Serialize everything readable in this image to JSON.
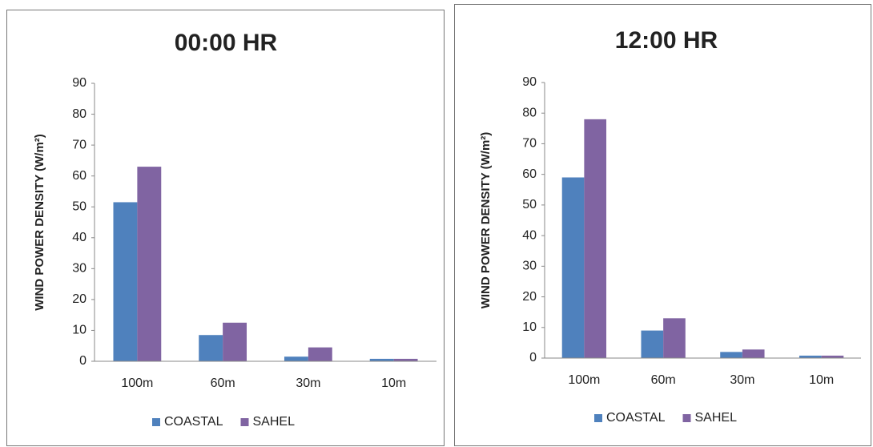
{
  "chart_data": [
    {
      "type": "bar",
      "title": "00:00 HR",
      "y_label": "WIND POWER DENSITY (W/m²)",
      "categories": [
        "100m",
        "60m",
        "30m",
        "10m"
      ],
      "series": [
        {
          "name": "COASTAL",
          "color": "#4f81bd",
          "values": [
            51.5,
            8.5,
            1.5,
            0.8
          ]
        },
        {
          "name": "SAHEL",
          "color": "#8064a2",
          "values": [
            63,
            12.5,
            4.5,
            0.8
          ]
        }
      ],
      "ylim": [
        0,
        90
      ],
      "yticks": [
        0,
        10,
        20,
        30,
        40,
        50,
        60,
        70,
        80,
        90
      ],
      "legend": "bottom"
    },
    {
      "type": "bar",
      "title": "12:00 HR",
      "y_label": "WIND POWER DENSITY (W/m²)",
      "categories": [
        "100m",
        "60m",
        "30m",
        "10m"
      ],
      "series": [
        {
          "name": "COASTAL",
          "color": "#4f81bd",
          "values": [
            59,
            9,
            2,
            0.8
          ]
        },
        {
          "name": "SAHEL",
          "color": "#8064a2",
          "values": [
            78,
            13,
            2.8,
            0.8
          ]
        }
      ],
      "ylim": [
        0,
        90
      ],
      "yticks": [
        0,
        10,
        20,
        30,
        40,
        50,
        60,
        70,
        80,
        90
      ],
      "legend": "bottom"
    }
  ]
}
